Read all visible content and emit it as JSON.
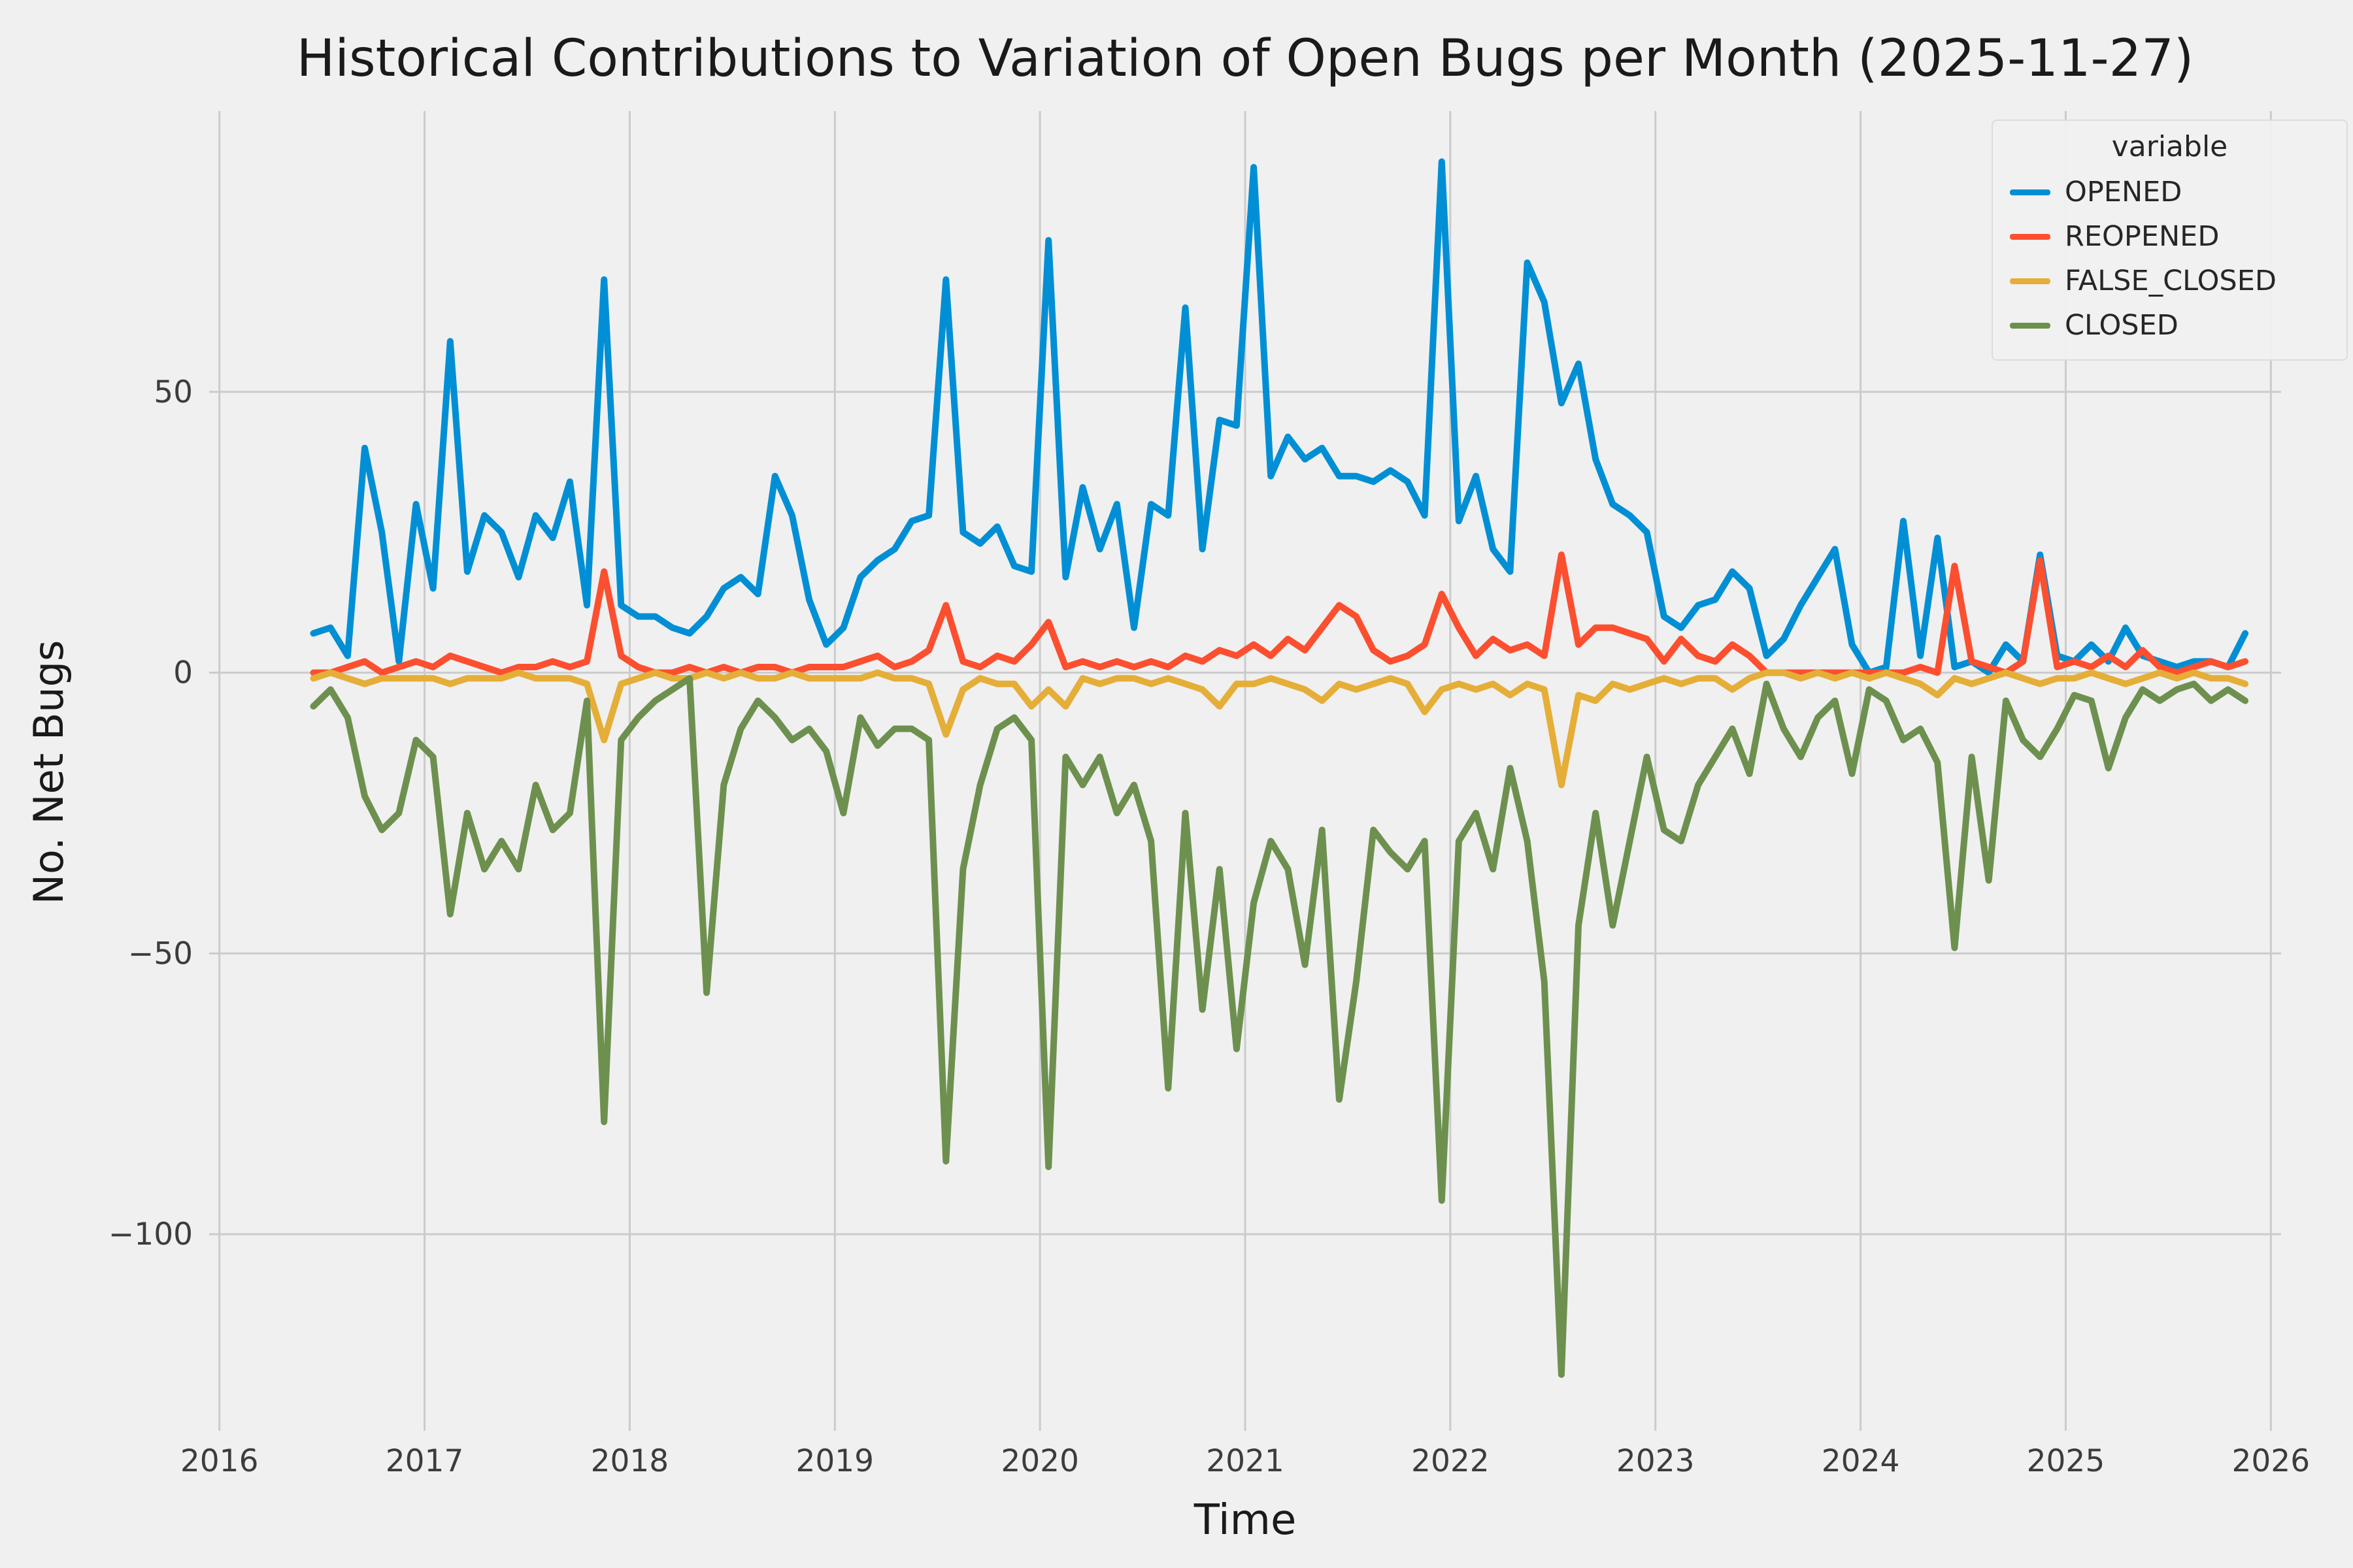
{
  "chart_data": {
    "type": "line",
    "title": "Historical Contributions to Variation of Open Bugs per Month (2025-11-27)",
    "xlabel": "Time",
    "ylabel": "No. Net Bugs",
    "xlim": [
      2015.95,
      2026.05
    ],
    "ylim": [
      -135,
      100
    ],
    "x_ticks": [
      2016,
      2017,
      2018,
      2019,
      2020,
      2021,
      2022,
      2023,
      2024,
      2025,
      2026
    ],
    "x_tick_labels": [
      "2016",
      "2017",
      "2018",
      "2019",
      "2020",
      "2021",
      "2022",
      "2023",
      "2024",
      "2025",
      "2026"
    ],
    "y_ticks": [
      -100,
      -50,
      0,
      50
    ],
    "y_tick_labels": [
      "−100",
      "−50",
      "0",
      "50"
    ],
    "grid": true,
    "background_color": "#f0f0f0",
    "grid_color": "#cbcbcb",
    "text_color": "#1a1a1a",
    "tick_color": "#3c3c3c",
    "legend": {
      "title": "variable",
      "position": "upper right"
    },
    "categories": [
      "2016-06",
      "2016-07",
      "2016-08",
      "2016-09",
      "2016-10",
      "2016-11",
      "2016-12",
      "2017-01",
      "2017-02",
      "2017-03",
      "2017-04",
      "2017-05",
      "2017-06",
      "2017-07",
      "2017-08",
      "2017-09",
      "2017-10",
      "2017-11",
      "2017-12",
      "2018-01",
      "2018-02",
      "2018-03",
      "2018-04",
      "2018-05",
      "2018-06",
      "2018-07",
      "2018-08",
      "2018-09",
      "2018-10",
      "2018-11",
      "2018-12",
      "2019-01",
      "2019-02",
      "2019-03",
      "2019-04",
      "2019-05",
      "2019-06",
      "2019-07",
      "2019-08",
      "2019-09",
      "2019-10",
      "2019-11",
      "2019-12",
      "2020-01",
      "2020-02",
      "2020-03",
      "2020-04",
      "2020-05",
      "2020-06",
      "2020-07",
      "2020-08",
      "2020-09",
      "2020-10",
      "2020-11",
      "2020-12",
      "2021-01",
      "2021-02",
      "2021-03",
      "2021-04",
      "2021-05",
      "2021-06",
      "2021-07",
      "2021-08",
      "2021-09",
      "2021-10",
      "2021-11",
      "2021-12",
      "2022-01",
      "2022-02",
      "2022-03",
      "2022-04",
      "2022-05",
      "2022-06",
      "2022-07",
      "2022-08",
      "2022-09",
      "2022-10",
      "2022-11",
      "2022-12",
      "2023-01",
      "2023-02",
      "2023-03",
      "2023-04",
      "2023-05",
      "2023-06",
      "2023-07",
      "2023-08",
      "2023-09",
      "2023-10",
      "2023-11",
      "2023-12",
      "2024-01",
      "2024-02",
      "2024-03",
      "2024-04",
      "2024-05",
      "2024-06",
      "2024-07",
      "2024-08",
      "2024-09",
      "2024-10",
      "2024-11",
      "2024-12",
      "2025-01",
      "2025-02",
      "2025-03",
      "2025-04",
      "2025-05",
      "2025-06",
      "2025-07",
      "2025-08",
      "2025-09",
      "2025-10",
      "2025-11"
    ],
    "series": [
      {
        "name": "OPENED",
        "color": "#008fd5",
        "values": [
          7,
          8,
          3,
          40,
          25,
          2,
          30,
          15,
          59,
          18,
          28,
          25,
          17,
          28,
          24,
          34,
          12,
          70,
          12,
          10,
          10,
          8,
          7,
          10,
          15,
          17,
          14,
          35,
          28,
          13,
          5,
          8,
          17,
          20,
          22,
          27,
          28,
          70,
          25,
          23,
          26,
          19,
          18,
          77,
          17,
          33,
          22,
          30,
          8,
          30,
          28,
          65,
          22,
          45,
          44,
          90,
          35,
          42,
          38,
          40,
          35,
          35,
          34,
          36,
          34,
          28,
          91,
          27,
          35,
          22,
          18,
          73,
          66,
          48,
          55,
          38,
          30,
          28,
          25,
          10,
          8,
          12,
          13,
          18,
          15,
          3,
          6,
          12,
          17,
          22,
          5,
          0,
          1,
          27,
          3,
          24,
          1,
          2,
          0,
          5,
          2,
          21,
          3,
          2,
          5,
          2,
          8,
          3,
          2,
          1,
          2,
          2,
          1,
          7
        ]
      },
      {
        "name": "REOPENED",
        "color": "#fc4f30",
        "values": [
          0,
          0,
          1,
          2,
          0,
          1,
          2,
          1,
          3,
          2,
          1,
          0,
          1,
          1,
          2,
          1,
          2,
          18,
          3,
          1,
          0,
          0,
          1,
          0,
          1,
          0,
          1,
          1,
          0,
          1,
          1,
          1,
          2,
          3,
          1,
          2,
          4,
          12,
          2,
          1,
          3,
          2,
          5,
          9,
          1,
          2,
          1,
          2,
          1,
          2,
          1,
          3,
          2,
          4,
          3,
          5,
          3,
          6,
          4,
          8,
          12,
          10,
          4,
          2,
          3,
          5,
          14,
          8,
          3,
          6,
          4,
          5,
          3,
          21,
          5,
          8,
          8,
          7,
          6,
          2,
          6,
          3,
          2,
          5,
          3,
          0,
          0,
          0,
          0,
          0,
          0,
          0,
          0,
          0,
          1,
          0,
          19,
          2,
          1,
          0,
          2,
          20,
          1,
          2,
          1,
          3,
          1,
          4,
          1,
          0,
          1,
          2,
          1,
          2
        ]
      },
      {
        "name": "FALSE_CLOSED",
        "color": "#e5ae38",
        "values": [
          -1,
          0,
          -1,
          -2,
          -1,
          -1,
          -1,
          -1,
          -2,
          -1,
          -1,
          -1,
          0,
          -1,
          -1,
          -1,
          -2,
          -12,
          -2,
          -1,
          0,
          -1,
          -1,
          0,
          -1,
          0,
          -1,
          -1,
          0,
          -1,
          -1,
          -1,
          -1,
          0,
          -1,
          -1,
          -2,
          -11,
          -3,
          -1,
          -2,
          -2,
          -6,
          -3,
          -6,
          -1,
          -2,
          -1,
          -1,
          -2,
          -1,
          -2,
          -3,
          -6,
          -2,
          -2,
          -1,
          -2,
          -3,
          -5,
          -2,
          -3,
          -2,
          -1,
          -2,
          -7,
          -3,
          -2,
          -3,
          -2,
          -4,
          -2,
          -3,
          -20,
          -4,
          -5,
          -2,
          -3,
          -2,
          -1,
          -2,
          -1,
          -1,
          -3,
          -1,
          0,
          0,
          -1,
          0,
          -1,
          0,
          -1,
          0,
          -1,
          -2,
          -4,
          -1,
          -2,
          -1,
          0,
          -1,
          -2,
          -1,
          -1,
          0,
          -1,
          -2,
          -1,
          0,
          -1,
          0,
          -1,
          -1,
          -2
        ]
      },
      {
        "name": "CLOSED",
        "color": "#6d904f",
        "values": [
          -6,
          -3,
          -8,
          -22,
          -28,
          -25,
          -12,
          -15,
          -43,
          -25,
          -35,
          -30,
          -35,
          -20,
          -28,
          -25,
          -5,
          -80,
          -12,
          -8,
          -5,
          -3,
          -1,
          -57,
          -20,
          -10,
          -5,
          -8,
          -12,
          -10,
          -14,
          -25,
          -8,
          -13,
          -10,
          -10,
          -12,
          -87,
          -35,
          -20,
          -10,
          -8,
          -12,
          -88,
          -15,
          -20,
          -15,
          -25,
          -20,
          -30,
          -74,
          -25,
          -60,
          -35,
          -67,
          -41,
          -30,
          -35,
          -52,
          -28,
          -76,
          -55,
          -28,
          -32,
          -35,
          -30,
          -94,
          -30,
          -25,
          -35,
          -17,
          -30,
          -55,
          -125,
          -45,
          -25,
          -45,
          -30,
          -15,
          -28,
          -30,
          -20,
          -15,
          -10,
          -18,
          -2,
          -10,
          -15,
          -8,
          -5,
          -18,
          -3,
          -5,
          -12,
          -10,
          -16,
          -49,
          -15,
          -37,
          -5,
          -12,
          -15,
          -10,
          -4,
          -5,
          -17,
          -8,
          -3,
          -5,
          -3,
          -2,
          -5,
          -3,
          -5
        ]
      }
    ]
  }
}
